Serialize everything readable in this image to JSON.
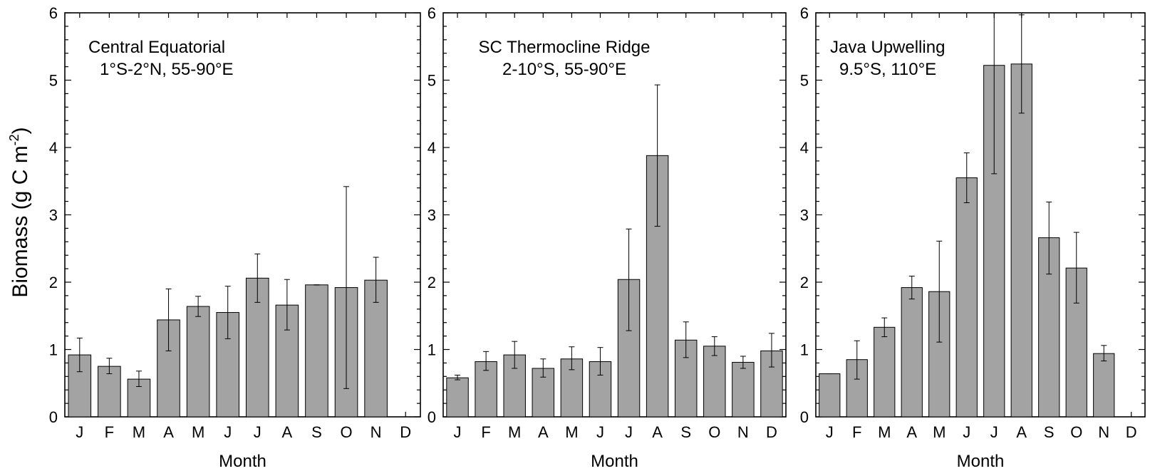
{
  "figure": {
    "ylabel": "Biomass (g C m",
    "ylabel_sup": "-2",
    "ylabel_close": ")",
    "bar_color": "#a3a3a3"
  },
  "chart_data": [
    {
      "type": "bar",
      "title": "Central Equatorial",
      "subtitle": "1°S-2°N, 55-90°E",
      "xlabel": "Month",
      "ylabel": "Biomass (g C m-2)",
      "ylim": [
        0,
        6
      ],
      "yticks": [
        "0",
        "1",
        "2",
        "3",
        "4",
        "5",
        "6"
      ],
      "categories": [
        "J",
        "F",
        "M",
        "A",
        "M",
        "J",
        "J",
        "A",
        "S",
        "O",
        "N",
        "D"
      ],
      "values": [
        0.92,
        0.75,
        0.56,
        1.44,
        1.64,
        1.55,
        2.06,
        1.66,
        1.96,
        1.92,
        2.03,
        null
      ],
      "err_low": [
        0.67,
        0.64,
        0.45,
        0.98,
        1.49,
        1.16,
        1.7,
        1.29,
        1.96,
        0.42,
        1.7,
        null
      ],
      "err_high": [
        1.17,
        0.87,
        0.68,
        1.9,
        1.79,
        1.94,
        2.42,
        2.04,
        1.96,
        3.42,
        2.37,
        null
      ]
    },
    {
      "type": "bar",
      "title": "SC Thermocline Ridge",
      "subtitle": "2-10°S, 55-90°E",
      "xlabel": "Month",
      "ylabel": "Biomass (g C m-2)",
      "ylim": [
        0,
        6
      ],
      "yticks": [
        "0",
        "1",
        "2",
        "3",
        "4",
        "5",
        "6"
      ],
      "categories": [
        "J",
        "F",
        "M",
        "A",
        "M",
        "J",
        "J",
        "A",
        "S",
        "O",
        "N",
        "D"
      ],
      "values": [
        0.58,
        0.82,
        0.92,
        0.72,
        0.86,
        0.82,
        2.04,
        3.88,
        1.14,
        1.05,
        0.81,
        0.98
      ],
      "err_low": [
        0.55,
        0.69,
        0.72,
        0.59,
        0.7,
        0.62,
        1.28,
        2.83,
        0.88,
        0.91,
        0.72,
        0.74
      ],
      "err_high": [
        0.62,
        0.97,
        1.12,
        0.86,
        1.04,
        1.03,
        2.79,
        4.93,
        1.41,
        1.19,
        0.9,
        1.24
      ]
    },
    {
      "type": "bar",
      "title": "Java Upwelling",
      "subtitle": "9.5°S, 110°E",
      "xlabel": "Month",
      "ylabel": "Biomass (g C m-2)",
      "ylim": [
        0,
        6
      ],
      "yticks": [
        "0",
        "1",
        "2",
        "3",
        "4",
        "5",
        "6"
      ],
      "categories": [
        "J",
        "F",
        "M",
        "A",
        "M",
        "J",
        "J",
        "A",
        "S",
        "O",
        "N",
        "D"
      ],
      "values": [
        0.64,
        0.85,
        1.33,
        1.92,
        1.86,
        3.55,
        5.22,
        5.24,
        2.66,
        2.21,
        0.94,
        null
      ],
      "err_low": [
        0.64,
        0.56,
        1.19,
        1.75,
        1.11,
        3.18,
        3.61,
        4.51,
        2.12,
        1.69,
        0.83,
        null
      ],
      "err_high": [
        0.64,
        1.13,
        1.47,
        2.09,
        2.61,
        3.92,
        6.05,
        5.97,
        3.19,
        2.74,
        1.06,
        null
      ]
    }
  ]
}
